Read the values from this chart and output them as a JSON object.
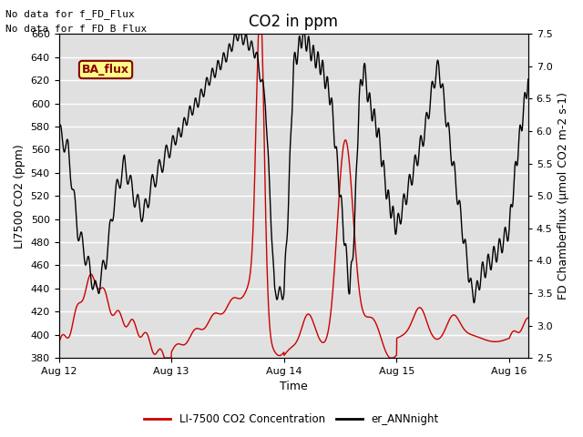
{
  "title": "CO2 in ppm",
  "ylabel_left": "LI7500 CO2 (ppm)",
  "ylabel_right": "FD Chamberflux (μmol CO2 m-2 s-1)",
  "xlabel": "Time",
  "ylim_left": [
    380,
    660
  ],
  "ylim_right": [
    2.5,
    7.5
  ],
  "yticks_left": [
    380,
    400,
    420,
    440,
    460,
    480,
    500,
    520,
    540,
    560,
    580,
    600,
    620,
    640,
    660
  ],
  "yticks_right": [
    2.5,
    3.0,
    3.5,
    4.0,
    4.5,
    5.0,
    5.5,
    6.0,
    6.5,
    7.0,
    7.5
  ],
  "xtick_labels": [
    "Aug 12",
    "Aug 13",
    "Aug 14",
    "Aug 15",
    "Aug 16"
  ],
  "text_lines": [
    "No data for f_FD_Flux",
    "No data for f_FD_B_Flux"
  ],
  "annotation_box": "BA_flux",
  "legend": [
    {
      "label": "LI-7500 CO2 Concentration",
      "color": "#cc0000",
      "linestyle": "-"
    },
    {
      "label": "er_ANNnight",
      "color": "#000000",
      "linestyle": "-"
    }
  ],
  "background_color": "#e0e0e0",
  "grid_color": "#ffffff",
  "title_fontsize": 12,
  "label_fontsize": 9,
  "figsize": [
    6.4,
    4.8
  ],
  "dpi": 100
}
